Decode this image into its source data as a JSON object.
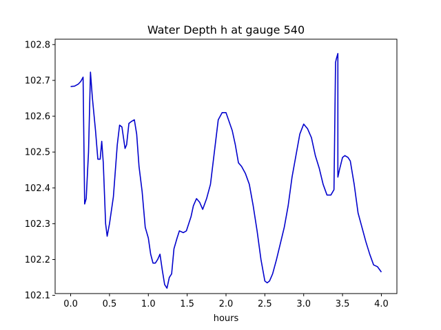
{
  "chart_data": {
    "type": "line",
    "title": "Water Depth h at gauge 540",
    "xlabel": "hours",
    "ylabel": "",
    "xlim": [
      -0.2,
      4.2
    ],
    "ylim": [
      102.105,
      102.815
    ],
    "xticks": [
      0.0,
      0.5,
      1.0,
      1.5,
      2.0,
      2.5,
      3.0,
      3.5,
      4.0
    ],
    "xtick_labels": [
      "0.0",
      "0.5",
      "1.0",
      "1.5",
      "2.0",
      "2.5",
      "3.0",
      "3.5",
      "4.0"
    ],
    "yticks": [
      102.1,
      102.2,
      102.3,
      102.4,
      102.5,
      102.6,
      102.7,
      102.8
    ],
    "ytick_labels": [
      "102.1",
      "102.2",
      "102.3",
      "102.4",
      "102.5",
      "102.6",
      "102.7",
      "102.8"
    ],
    "grid": false,
    "line_color": "#0000cc",
    "series": [
      {
        "x": [
          0.0,
          0.05,
          0.1,
          0.13,
          0.16,
          0.18,
          0.18,
          0.2,
          0.23,
          0.255,
          0.28,
          0.32,
          0.35,
          0.38,
          0.4,
          0.42,
          0.45,
          0.47,
          0.5,
          0.55,
          0.6,
          0.63,
          0.66,
          0.7,
          0.72,
          0.75,
          0.78,
          0.82,
          0.85,
          0.88,
          0.92,
          0.96,
          1.0,
          1.03,
          1.06,
          1.09,
          1.12,
          1.15,
          1.18,
          1.21,
          1.24,
          1.27,
          1.3,
          1.33,
          1.37,
          1.4,
          1.45,
          1.49,
          1.52,
          1.55,
          1.58,
          1.62,
          1.66,
          1.7,
          1.75,
          1.8,
          1.85,
          1.9,
          1.95,
          2.0,
          2.04,
          2.08,
          2.12,
          2.16,
          2.2,
          2.25,
          2.3,
          2.35,
          2.4,
          2.45,
          2.5,
          2.53,
          2.56,
          2.6,
          2.65,
          2.7,
          2.75,
          2.8,
          2.85,
          2.9,
          2.95,
          3.0,
          3.05,
          3.1,
          3.15,
          3.2,
          3.25,
          3.3,
          3.35,
          3.39,
          3.41,
          3.42,
          3.44,
          3.44,
          3.46,
          3.5,
          3.53,
          3.57,
          3.6,
          3.65,
          3.7,
          3.75,
          3.8,
          3.85,
          3.9,
          3.95,
          4.0
        ],
        "y": [
          102.683,
          102.684,
          102.69,
          102.697,
          102.709,
          102.355,
          102.355,
          102.37,
          102.5,
          102.723,
          102.65,
          102.56,
          102.48,
          102.48,
          102.53,
          102.47,
          102.3,
          102.265,
          102.3,
          102.375,
          102.52,
          102.575,
          102.57,
          102.51,
          102.52,
          102.58,
          102.585,
          102.59,
          102.55,
          102.46,
          102.39,
          102.29,
          102.26,
          102.215,
          102.19,
          102.19,
          102.2,
          102.215,
          102.17,
          102.13,
          102.12,
          102.15,
          102.16,
          102.23,
          102.26,
          102.28,
          102.275,
          102.28,
          102.3,
          102.32,
          102.35,
          102.37,
          102.36,
          102.34,
          102.37,
          102.41,
          102.5,
          102.59,
          102.61,
          102.61,
          102.585,
          102.56,
          102.52,
          102.47,
          102.46,
          102.44,
          102.41,
          102.35,
          102.28,
          102.2,
          102.14,
          102.135,
          102.14,
          102.16,
          102.2,
          102.245,
          102.29,
          102.35,
          102.43,
          102.49,
          102.55,
          102.578,
          102.565,
          102.54,
          102.49,
          102.455,
          102.41,
          102.38,
          102.38,
          102.395,
          102.75,
          102.76,
          102.775,
          102.43,
          102.45,
          102.485,
          102.49,
          102.485,
          102.475,
          102.41,
          102.33,
          102.29,
          102.25,
          102.215,
          102.185,
          102.18,
          102.165
        ]
      }
    ]
  }
}
